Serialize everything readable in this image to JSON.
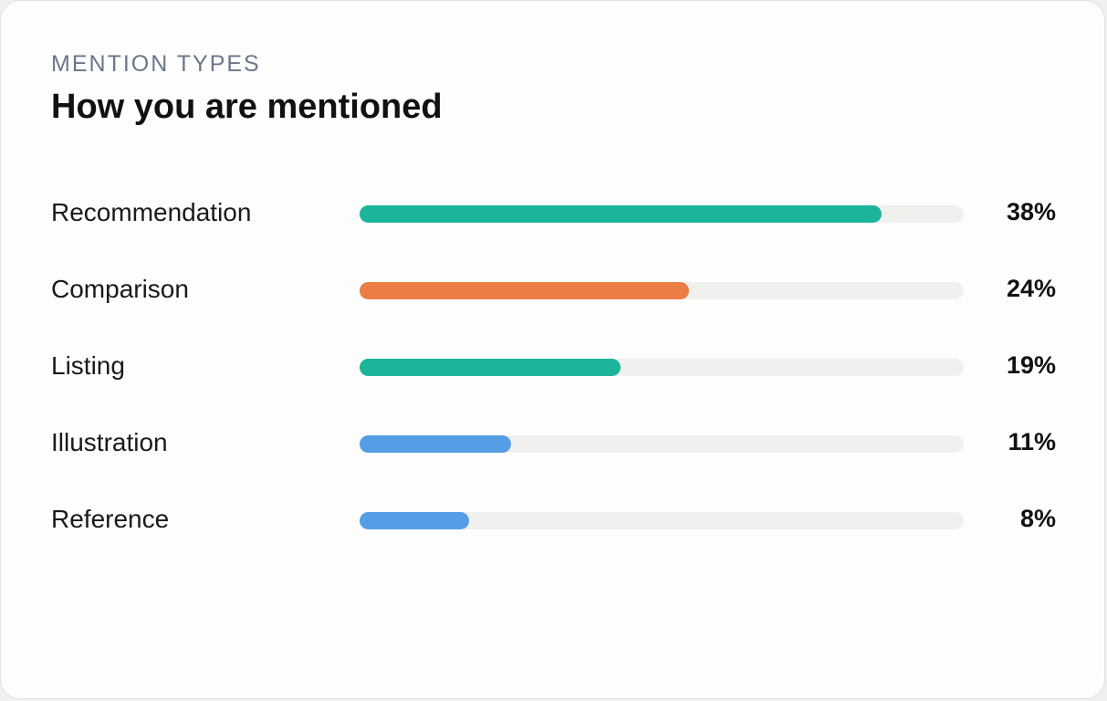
{
  "header": {
    "eyebrow": "MENTION TYPES",
    "title": "How you are mentioned"
  },
  "chart_data": {
    "type": "bar",
    "orientation": "horizontal",
    "categories": [
      "Recommendation",
      "Comparison",
      "Listing",
      "Illustration",
      "Reference"
    ],
    "values": [
      38,
      24,
      19,
      11,
      8
    ],
    "value_labels": [
      "38%",
      "24%",
      "19%",
      "11%",
      "8%"
    ],
    "colors": [
      "#1db59a",
      "#ec7d45",
      "#1db59a",
      "#559ee6",
      "#559ee6"
    ],
    "track_color": "#f0f0ee",
    "xlim": [
      0,
      44
    ]
  }
}
